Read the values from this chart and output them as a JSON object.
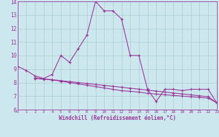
{
  "x_main": [
    0,
    1,
    2,
    3,
    4,
    5,
    6,
    7,
    8,
    9,
    10,
    11,
    12,
    13,
    14,
    15,
    16,
    17,
    18,
    19,
    20,
    21,
    22,
    23
  ],
  "y_main": [
    9.2,
    8.9,
    8.5,
    8.3,
    8.6,
    10.0,
    9.5,
    10.5,
    11.5,
    14.0,
    13.3,
    13.3,
    12.7,
    10.0,
    10.0,
    7.5,
    6.6,
    7.5,
    7.5,
    7.4,
    7.5,
    7.5,
    7.5,
    6.5
  ],
  "x_lin1": [
    2,
    3,
    4,
    5,
    6,
    7,
    8,
    9,
    10,
    11,
    12,
    13,
    14,
    15,
    16,
    17,
    18,
    19,
    20,
    21,
    22,
    23
  ],
  "y_lin1": [
    8.3,
    8.25,
    8.2,
    8.1,
    8.0,
    7.9,
    7.8,
    7.7,
    7.6,
    7.5,
    7.4,
    7.35,
    7.3,
    7.2,
    7.15,
    7.1,
    7.05,
    7.0,
    6.95,
    6.9,
    6.85,
    6.5
  ],
  "x_lin2": [
    2,
    3,
    4,
    5,
    6,
    7,
    8,
    9,
    10,
    11,
    12,
    13,
    14,
    15,
    16,
    17,
    18,
    19,
    20,
    21,
    22,
    23
  ],
  "y_lin2": [
    8.35,
    8.28,
    8.21,
    8.14,
    8.07,
    8.0,
    7.93,
    7.86,
    7.79,
    7.72,
    7.65,
    7.58,
    7.51,
    7.44,
    7.37,
    7.3,
    7.23,
    7.16,
    7.09,
    7.02,
    6.95,
    6.5
  ],
  "bg_color": "#cce8ee",
  "line_color": "#993399",
  "grid_color": "#aacccc",
  "xlabel": "Windchill (Refroidissement éolien,°C)",
  "ylim_min": 6,
  "ylim_max": 14,
  "xlim_min": 0,
  "xlim_max": 23
}
